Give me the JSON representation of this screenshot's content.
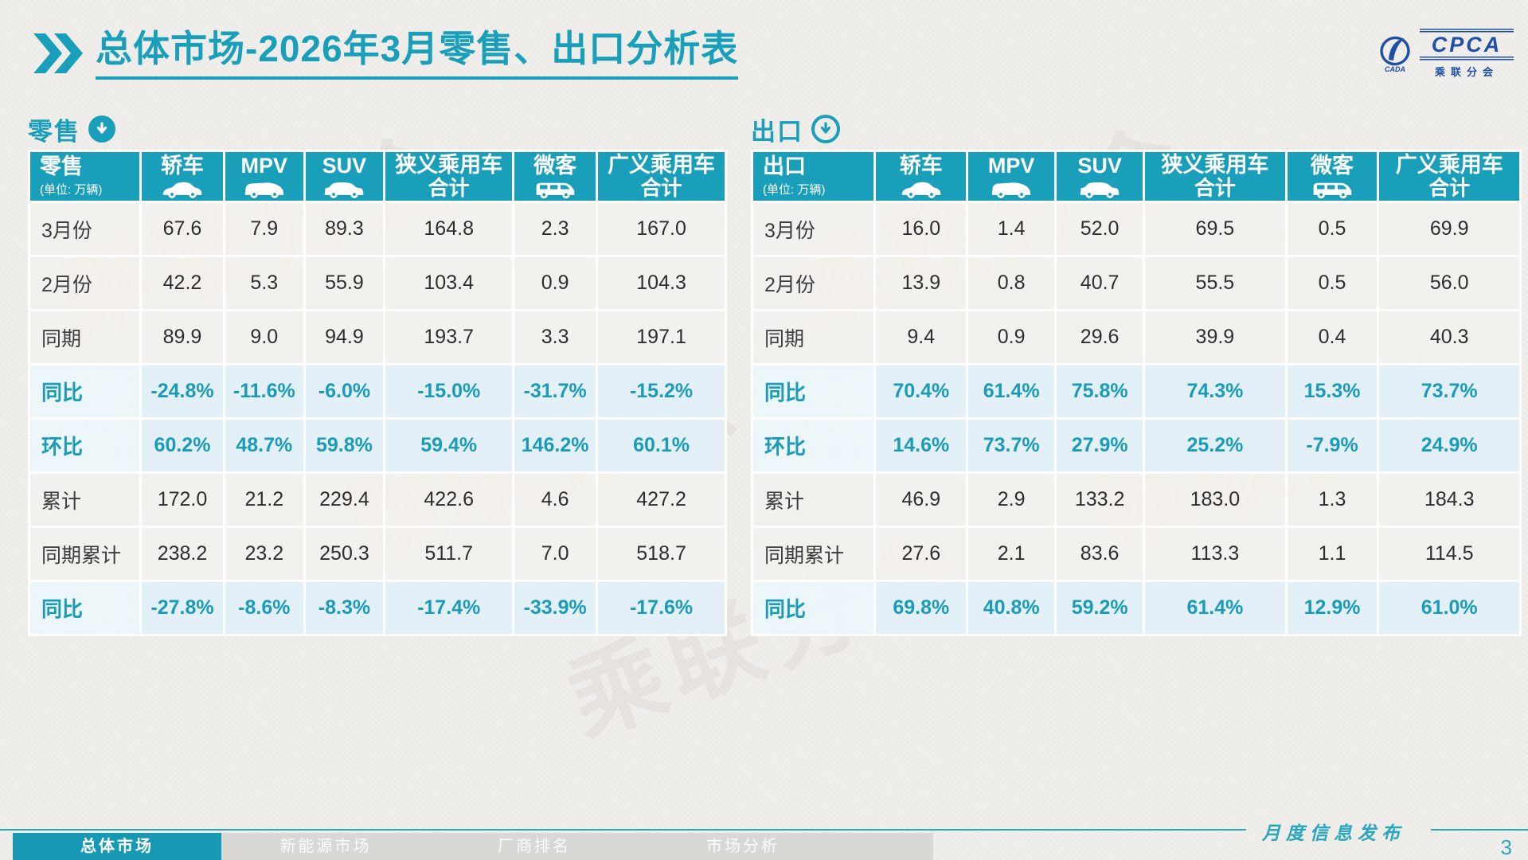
{
  "page": {
    "title": "总体市场-2026年3月零售、出口分析表",
    "footer_label": "月度信息发布",
    "page_number": "3"
  },
  "logo": {
    "name": "CPCA",
    "subtitle": "乘联分会",
    "mark_text": "CADA"
  },
  "colors": {
    "teal": "#1a9fba",
    "highlight_row_bg": "#e4f1f8",
    "row_bg": "#f4f3f0",
    "page_bg": "#f0efec",
    "logo_blue": "#1f4fa5"
  },
  "tables": [
    {
      "section_label": "零售",
      "unit": "(单位: 万辆)",
      "columns": [
        {
          "label": "轿车",
          "icon": "sedan-icon"
        },
        {
          "label": "MPV",
          "icon": "mpv-icon"
        },
        {
          "label": "SUV",
          "icon": "suv-icon"
        },
        {
          "label": "狭义乘用车",
          "label2": "合计"
        },
        {
          "label": "微客",
          "icon": "minibus-icon"
        },
        {
          "label": "广义乘用车",
          "label2": "合计"
        }
      ],
      "rows": [
        {
          "label": "3月份",
          "values": [
            "67.6",
            "7.9",
            "89.3",
            "164.8",
            "2.3",
            "167.0"
          ]
        },
        {
          "label": "2月份",
          "values": [
            "42.2",
            "5.3",
            "55.9",
            "103.4",
            "0.9",
            "104.3"
          ]
        },
        {
          "label": "同期",
          "values": [
            "89.9",
            "9.0",
            "94.9",
            "193.7",
            "3.3",
            "197.1"
          ]
        },
        {
          "label": "同比",
          "highlight": true,
          "values": [
            "-24.8%",
            "-11.6%",
            "-6.0%",
            "-15.0%",
            "-31.7%",
            "-15.2%"
          ]
        },
        {
          "label": "环比",
          "highlight": true,
          "values": [
            "60.2%",
            "48.7%",
            "59.8%",
            "59.4%",
            "146.2%",
            "60.1%"
          ]
        },
        {
          "label": "累计",
          "values": [
            "172.0",
            "21.2",
            "229.4",
            "422.6",
            "4.6",
            "427.2"
          ]
        },
        {
          "label": "同期累计",
          "values": [
            "238.2",
            "23.2",
            "250.3",
            "511.7",
            "7.0",
            "518.7"
          ]
        },
        {
          "label": "同比",
          "highlight": true,
          "values": [
            "-27.8%",
            "-8.6%",
            "-8.3%",
            "-17.4%",
            "-33.9%",
            "-17.6%"
          ]
        }
      ]
    },
    {
      "section_label": "出口",
      "unit": "(单位: 万辆)",
      "columns": [
        {
          "label": "轿车",
          "icon": "sedan-icon"
        },
        {
          "label": "MPV",
          "icon": "mpv-icon"
        },
        {
          "label": "SUV",
          "icon": "suv-icon"
        },
        {
          "label": "狭义乘用车",
          "label2": "合计"
        },
        {
          "label": "微客",
          "icon": "minibus-icon"
        },
        {
          "label": "广义乘用车",
          "label2": "合计"
        }
      ],
      "rows": [
        {
          "label": "3月份",
          "values": [
            "16.0",
            "1.4",
            "52.0",
            "69.5",
            "0.5",
            "69.9"
          ]
        },
        {
          "label": "2月份",
          "values": [
            "13.9",
            "0.8",
            "40.7",
            "55.5",
            "0.5",
            "56.0"
          ]
        },
        {
          "label": "同期",
          "values": [
            "9.4",
            "0.9",
            "29.6",
            "39.9",
            "0.4",
            "40.3"
          ]
        },
        {
          "label": "同比",
          "highlight": true,
          "values": [
            "70.4%",
            "61.4%",
            "75.8%",
            "74.3%",
            "15.3%",
            "73.7%"
          ]
        },
        {
          "label": "环比",
          "highlight": true,
          "values": [
            "14.6%",
            "73.7%",
            "27.9%",
            "25.2%",
            "-7.9%",
            "24.9%"
          ]
        },
        {
          "label": "累计",
          "values": [
            "46.9",
            "2.9",
            "133.2",
            "183.0",
            "1.3",
            "184.3"
          ]
        },
        {
          "label": "同期累计",
          "values": [
            "27.6",
            "2.1",
            "83.6",
            "113.3",
            "1.1",
            "114.5"
          ]
        },
        {
          "label": "同比",
          "highlight": true,
          "values": [
            "69.8%",
            "40.8%",
            "59.2%",
            "61.4%",
            "12.9%",
            "61.0%"
          ]
        }
      ]
    }
  ],
  "nav": {
    "tabs": [
      {
        "label": "总体市场",
        "active": true
      },
      {
        "label": "新能源市场",
        "active": false
      },
      {
        "label": "厂商排名",
        "active": false
      },
      {
        "label": "市场分析",
        "active": false
      }
    ]
  }
}
